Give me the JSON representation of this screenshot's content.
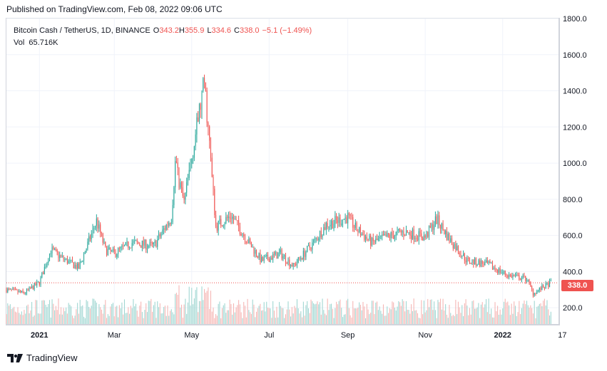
{
  "header": {
    "published_text": "Published on TradingView.com, Feb 08, 2022 09:06 UTC"
  },
  "legend": {
    "symbol": "Bitcoin Cash / TetherUS, 1D, BINANCE",
    "open_label": "O",
    "open_value": "343.2",
    "high_label": "H",
    "high_value": "355.9",
    "low_label": "L",
    "low_value": "334.6",
    "close_label": "C",
    "close_value": "338.0",
    "change_value": "−5.1 (−1.49%)",
    "volume_label": "Vol",
    "volume_value": "65.716K"
  },
  "price_tag": "338.0",
  "footer": {
    "brand": "TradingView"
  },
  "colors": {
    "up": "#26a69a",
    "down": "#ef5350",
    "up_volume": "#9fd6d1",
    "down_volume": "#f5b5b3",
    "grid": "#f0f3fa",
    "axis_text": "#131722"
  },
  "chart_data": {
    "type": "candlestick",
    "y_axis": {
      "ticks": [
        "200.0",
        "400.0",
        "600.0",
        "800.0",
        "1000.0",
        "1200.0",
        "1400.0",
        "1600.0",
        "1800.0"
      ],
      "tick_values": [
        200,
        400,
        600,
        800,
        1000,
        1200,
        1400,
        1600,
        1800
      ],
      "range": [
        110,
        1800
      ],
      "position": "right"
    },
    "x_axis": {
      "ticks": [
        "2021",
        "Mar",
        "May",
        "Jul",
        "Sep",
        "Nov",
        "2022",
        "17"
      ],
      "tick_dates": [
        "2021-01-01",
        "2021-03-01",
        "2021-05-01",
        "2021-07-01",
        "2021-09-01",
        "2021-11-01",
        "2022-01-01",
        "2022-02-17"
      ],
      "range": [
        "2020-12-06",
        "2022-02-14"
      ]
    },
    "last_price_line": 338.0,
    "grid": true,
    "key_points": [
      {
        "date": "2020-12-06",
        "close": 300
      },
      {
        "date": "2020-12-20",
        "close": 280
      },
      {
        "date": "2021-01-01",
        "close": 340
      },
      {
        "date": "2021-01-10",
        "close": 520
      },
      {
        "date": "2021-01-20",
        "close": 470
      },
      {
        "date": "2021-02-01",
        "close": 420
      },
      {
        "date": "2021-02-15",
        "close": 680
      },
      {
        "date": "2021-02-22",
        "close": 520
      },
      {
        "date": "2021-03-01",
        "close": 500
      },
      {
        "date": "2021-03-15",
        "close": 560
      },
      {
        "date": "2021-04-01",
        "close": 540
      },
      {
        "date": "2021-04-15",
        "close": 700
      },
      {
        "date": "2021-04-18",
        "close": 1000
      },
      {
        "date": "2021-04-25",
        "close": 780
      },
      {
        "date": "2021-05-05",
        "close": 1200
      },
      {
        "date": "2021-05-11",
        "close": 1450
      },
      {
        "date": "2021-05-15",
        "close": 1100
      },
      {
        "date": "2021-05-20",
        "close": 650
      },
      {
        "date": "2021-06-01",
        "close": 710
      },
      {
        "date": "2021-06-15",
        "close": 560
      },
      {
        "date": "2021-06-25",
        "close": 460
      },
      {
        "date": "2021-07-10",
        "close": 500
      },
      {
        "date": "2021-07-20",
        "close": 430
      },
      {
        "date": "2021-08-05",
        "close": 560
      },
      {
        "date": "2021-08-15",
        "close": 660
      },
      {
        "date": "2021-09-01",
        "close": 700
      },
      {
        "date": "2021-09-07",
        "close": 640
      },
      {
        "date": "2021-09-20",
        "close": 560
      },
      {
        "date": "2021-10-01",
        "close": 590
      },
      {
        "date": "2021-10-15",
        "close": 620
      },
      {
        "date": "2021-11-01",
        "close": 590
      },
      {
        "date": "2021-11-10",
        "close": 690
      },
      {
        "date": "2021-11-20",
        "close": 580
      },
      {
        "date": "2021-12-04",
        "close": 460
      },
      {
        "date": "2021-12-20",
        "close": 440
      },
      {
        "date": "2022-01-05",
        "close": 380
      },
      {
        "date": "2022-01-20",
        "close": 360
      },
      {
        "date": "2022-01-25",
        "close": 280
      },
      {
        "date": "2022-02-08",
        "close": 338
      }
    ]
  }
}
